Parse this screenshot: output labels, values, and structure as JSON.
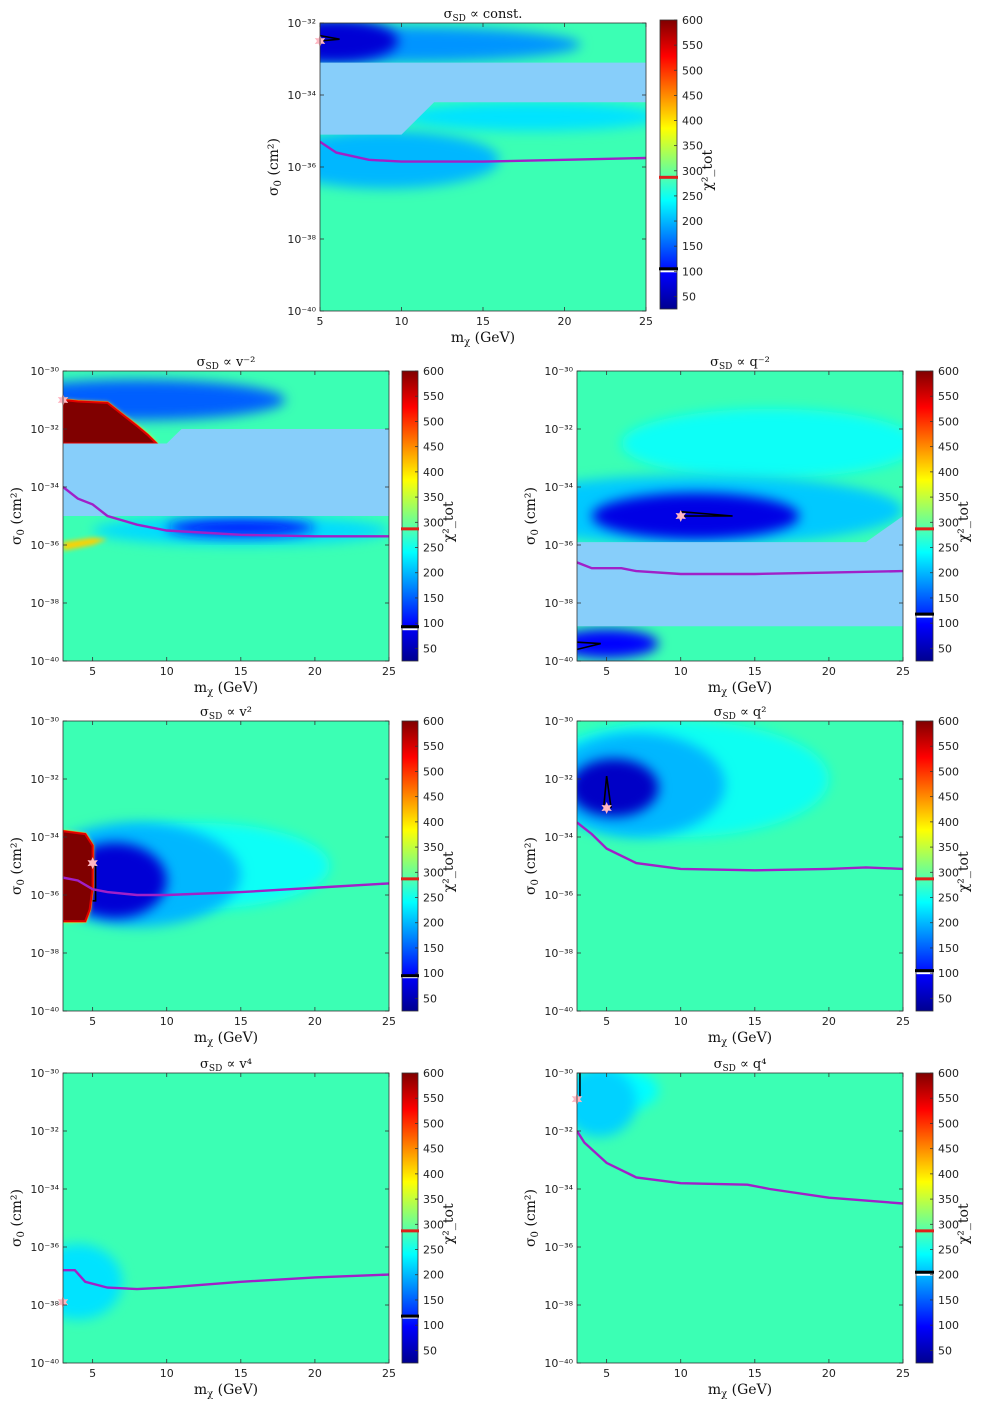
{
  "colorbar": {
    "label": "χ²_tot",
    "ticks_main": [
      50,
      100,
      150,
      200,
      250,
      300,
      350,
      400,
      450,
      500,
      550,
      600
    ],
    "range": [
      25,
      600
    ],
    "stops": [
      "#00008f",
      "#0000ff",
      "#0080ff",
      "#00ffff",
      "#80ff80",
      "#ffff00",
      "#ff8000",
      "#ff0000",
      "#800000"
    ]
  },
  "bg_color": "#3bffb4",
  "band_color": "#87cefa",
  "limit_color": "#a020c8",
  "star_color": "#ffb6c1",
  "chart_data": [
    {
      "id": "const",
      "type": "heatmap",
      "title_main": "σ",
      "title_sub": "SD",
      "title_rest": " ∝ const.",
      "xlabel": "m",
      "xlabel_sub": "χ",
      "xlabel_rest": " (GeV)",
      "ylabel": "σ",
      "ylabel_sub": "0",
      "ylabel_rest": " (cm²)",
      "xlim": [
        5,
        25
      ],
      "ylim": [
        -40,
        -32
      ],
      "xticks": [
        5,
        10,
        15,
        20,
        25
      ],
      "yticks": [
        -40,
        -38,
        -36,
        -34,
        -32
      ],
      "ytick_labels": [
        "10⁻⁴⁰",
        "10⁻³⁸",
        "10⁻³⁶",
        "10⁻³⁴",
        "10⁻³²"
      ],
      "band": [
        [
          5,
          -35.1
        ],
        [
          10,
          -35.1
        ],
        [
          12,
          -34.2
        ],
        [
          25,
          -34.2
        ],
        [
          25,
          -33.1
        ],
        [
          5,
          -33.1
        ]
      ],
      "blobs": [
        {
          "x": 5.8,
          "y": -32.5,
          "rx": 4,
          "ry": 0.6,
          "chi": 70
        },
        {
          "x": 9,
          "y": -32.6,
          "rx": 12,
          "ry": 0.5,
          "chi": 180
        },
        {
          "x": 9,
          "y": -35.8,
          "rx": 7,
          "ry": 0.8,
          "chi": 200
        },
        {
          "x": 18,
          "y": -34.6,
          "rx": 8,
          "ry": 0.4,
          "chi": 225
        }
      ],
      "star": [
        5,
        -32.5
      ],
      "contour": [
        [
          5,
          -32.5
        ],
        [
          6.2,
          -32.45
        ],
        [
          5,
          -32.35
        ]
      ],
      "limit": [
        [
          5,
          -35.3
        ],
        [
          6,
          -35.6
        ],
        [
          8,
          -35.8
        ],
        [
          10,
          -35.85
        ],
        [
          15,
          -35.85
        ],
        [
          20,
          -35.8
        ],
        [
          25,
          -35.75
        ]
      ],
      "marker_red": 287,
      "marker_black": 105,
      "bar_cut": 100
    },
    {
      "id": "vm2",
      "type": "heatmap",
      "title_main": "σ",
      "title_sub": "SD",
      "title_rest": " ∝ v⁻²",
      "xlabel": "m",
      "xlabel_sub": "χ",
      "xlabel_rest": " (GeV)",
      "ylabel": "σ",
      "ylabel_sub": "0",
      "ylabel_rest": " (cm²)",
      "xlim": [
        3,
        25
      ],
      "ylim": [
        -40,
        -30
      ],
      "xticks": [
        5,
        10,
        15,
        20,
        25
      ],
      "yticks": [
        -40,
        -38,
        -36,
        -34,
        -32,
        -30
      ],
      "ytick_labels": [
        "10⁻⁴⁰",
        "10⁻³⁸",
        "10⁻³⁶",
        "10⁻³⁴",
        "10⁻³²",
        "10⁻³⁰"
      ],
      "band": [
        [
          3,
          -35.0
        ],
        [
          25,
          -35.0
        ],
        [
          25,
          -32.0
        ],
        [
          11,
          -32.0
        ],
        [
          10,
          -32.5
        ],
        [
          3,
          -32.5
        ]
      ],
      "blobs": [
        {
          "x": 8,
          "y": -31.0,
          "rx": 10,
          "ry": 0.7,
          "chi": 150
        },
        {
          "x": 15,
          "y": -35.4,
          "rx": 5,
          "ry": 0.3,
          "chi": 110
        },
        {
          "x": 15,
          "y": -35.5,
          "rx": 10,
          "ry": 0.5,
          "chi": 220
        }
      ],
      "hot": [
        [
          3,
          -32.5
        ],
        [
          3,
          -31.0
        ],
        [
          4,
          -31.05
        ],
        [
          6,
          -31.1
        ],
        [
          7,
          -31.5
        ],
        [
          8,
          -31.9
        ],
        [
          8.7,
          -32.2
        ],
        [
          9.3,
          -32.5
        ]
      ],
      "hot_strip": [
        [
          3,
          -36.2
        ],
        [
          3,
          -35.9
        ],
        [
          5,
          -35.75
        ],
        [
          6,
          -35.8
        ],
        [
          5,
          -36.0
        ]
      ],
      "star": [
        3,
        -31.0
      ],
      "limit": [
        [
          3,
          -34.0
        ],
        [
          4,
          -34.4
        ],
        [
          5,
          -34.6
        ],
        [
          6,
          -35.0
        ],
        [
          8,
          -35.3
        ],
        [
          10,
          -35.5
        ],
        [
          15,
          -35.65
        ],
        [
          20,
          -35.7
        ],
        [
          25,
          -35.7
        ]
      ],
      "marker_red": 287,
      "marker_black": 93,
      "bar_cut": 88
    },
    {
      "id": "qm2",
      "type": "heatmap",
      "title_main": "σ",
      "title_sub": "SD",
      "title_rest": " ∝ q⁻²",
      "xlabel": "m",
      "xlabel_sub": "χ",
      "xlabel_rest": " (GeV)",
      "ylabel": "σ",
      "ylabel_sub": "0",
      "ylabel_rest": " (cm²)",
      "xlim": [
        3,
        25
      ],
      "ylim": [
        -40,
        -30
      ],
      "xticks": [
        5,
        10,
        15,
        20,
        25
      ],
      "yticks": [
        -40,
        -38,
        -36,
        -34,
        -32,
        -30
      ],
      "ytick_labels": [
        "10⁻⁴⁰",
        "10⁻³⁸",
        "10⁻³⁶",
        "10⁻³⁴",
        "10⁻³²",
        "10⁻³⁰"
      ],
      "band": [
        [
          3,
          -38.8
        ],
        [
          25,
          -38.8
        ],
        [
          25,
          -35.0
        ],
        [
          22.5,
          -35.9
        ],
        [
          3,
          -35.9
        ]
      ],
      "blobs": [
        {
          "x": 11,
          "y": -35.0,
          "rx": 7,
          "ry": 0.8,
          "chi": 80
        },
        {
          "x": 11,
          "y": -34.8,
          "rx": 14,
          "ry": 1.2,
          "chi": 210
        },
        {
          "x": 5,
          "y": -39.4,
          "rx": 3.5,
          "ry": 0.5,
          "chi": 100
        },
        {
          "x": 16,
          "y": -32.5,
          "rx": 10,
          "ry": 1.2,
          "chi": 245
        }
      ],
      "star": [
        10,
        -35.0
      ],
      "contour": [
        [
          10,
          -35.0
        ],
        [
          13.5,
          -35.0
        ],
        [
          10,
          -34.85
        ]
      ],
      "contour2": [
        [
          3,
          -39.35
        ],
        [
          4.6,
          -39.4
        ],
        [
          3,
          -39.6
        ]
      ],
      "limit": [
        [
          3,
          -36.6
        ],
        [
          4,
          -36.8
        ],
        [
          6,
          -36.8
        ],
        [
          7,
          -36.9
        ],
        [
          10,
          -37.0
        ],
        [
          15,
          -37.0
        ],
        [
          20,
          -36.95
        ],
        [
          25,
          -36.9
        ]
      ],
      "marker_red": 287,
      "marker_black": 118,
      "bar_cut": 113
    },
    {
      "id": "v2",
      "type": "heatmap",
      "title_main": "σ",
      "title_sub": "SD",
      "title_rest": " ∝ v²",
      "xlabel": "m",
      "xlabel_sub": "χ",
      "xlabel_rest": " (GeV)",
      "ylabel": "σ",
      "ylabel_sub": "0",
      "ylabel_rest": " (cm²)",
      "xlim": [
        3,
        25
      ],
      "ylim": [
        -40,
        -30
      ],
      "xticks": [
        5,
        10,
        15,
        20,
        25
      ],
      "yticks": [
        -40,
        -38,
        -36,
        -34,
        -32,
        -30
      ],
      "ytick_labels": [
        "10⁻⁴⁰",
        "10⁻³⁸",
        "10⁻³⁶",
        "10⁻³⁴",
        "10⁻³²",
        "10⁻³⁰"
      ],
      "blobs": [
        {
          "x": 6.5,
          "y": -35.5,
          "rx": 3.5,
          "ry": 1.3,
          "chi": 70
        },
        {
          "x": 8,
          "y": -35.3,
          "rx": 7,
          "ry": 1.8,
          "chi": 200
        },
        {
          "x": 12,
          "y": -35.0,
          "rx": 9,
          "ry": 1.5,
          "chi": 245
        }
      ],
      "hot": [
        [
          3,
          -33.8
        ],
        [
          4.5,
          -33.9
        ],
        [
          5,
          -34.3
        ],
        [
          5,
          -35.7
        ],
        [
          4.8,
          -36.5
        ],
        [
          4.5,
          -36.9
        ],
        [
          3,
          -36.9
        ]
      ],
      "star": [
        5,
        -34.9
      ],
      "contour": [
        [
          5,
          -34.9
        ],
        [
          5.2,
          -35.0
        ],
        [
          5.2,
          -36.2
        ],
        [
          5,
          -36.2
        ]
      ],
      "limit": [
        [
          3,
          -35.4
        ],
        [
          4,
          -35.5
        ],
        [
          5,
          -35.8
        ],
        [
          6,
          -35.9
        ],
        [
          8,
          -36.0
        ],
        [
          10,
          -36.0
        ],
        [
          15,
          -35.9
        ],
        [
          20,
          -35.75
        ],
        [
          25,
          -35.6
        ]
      ],
      "marker_red": 287,
      "marker_black": 95,
      "bar_cut": 92
    },
    {
      "id": "q2",
      "type": "heatmap",
      "title_main": "σ",
      "title_sub": "SD",
      "title_rest": " ∝ q²",
      "xlabel": "m",
      "xlabel_sub": "χ",
      "xlabel_rest": " (GeV)",
      "ylabel": "σ",
      "ylabel_sub": "0",
      "ylabel_rest": " (cm²)",
      "xlim": [
        3,
        25
      ],
      "ylim": [
        -40,
        -30
      ],
      "xticks": [
        5,
        10,
        15,
        20,
        25
      ],
      "yticks": [
        -40,
        -38,
        -36,
        -34,
        -32,
        -30
      ],
      "ytick_labels": [
        "10⁻⁴⁰",
        "10⁻³⁸",
        "10⁻³⁶",
        "10⁻³⁴",
        "10⁻³²",
        "10⁻³⁰"
      ],
      "blobs": [
        {
          "x": 5.5,
          "y": -32.3,
          "rx": 3,
          "ry": 1.0,
          "chi": 60
        },
        {
          "x": 7,
          "y": -32.2,
          "rx": 6,
          "ry": 1.8,
          "chi": 200
        },
        {
          "x": 10,
          "y": -32.0,
          "rx": 10,
          "ry": 2.0,
          "chi": 248
        }
      ],
      "star": [
        5,
        -33.0
      ],
      "contour": [
        [
          4.8,
          -33.0
        ],
        [
          5,
          -31.9
        ],
        [
          5.3,
          -33.0
        ]
      ],
      "limit": [
        [
          3,
          -33.5
        ],
        [
          4,
          -33.9
        ],
        [
          5,
          -34.4
        ],
        [
          7,
          -34.9
        ],
        [
          10,
          -35.1
        ],
        [
          15,
          -35.15
        ],
        [
          20,
          -35.1
        ],
        [
          22.5,
          -35.05
        ],
        [
          25,
          -35.1
        ]
      ],
      "marker_red": 287,
      "marker_black": 105,
      "bar_cut": 100
    },
    {
      "id": "v4",
      "type": "heatmap",
      "title_main": "σ",
      "title_sub": "SD",
      "title_rest": " ∝ v⁴",
      "xlabel": "m",
      "xlabel_sub": "χ",
      "xlabel_rest": " (GeV)",
      "ylabel": "σ",
      "ylabel_sub": "0",
      "ylabel_rest": " (cm²)",
      "xlim": [
        3,
        25
      ],
      "ylim": [
        -40,
        -30
      ],
      "xticks": [
        5,
        10,
        15,
        20,
        25
      ],
      "yticks": [
        -40,
        -38,
        -36,
        -34,
        -32,
        -30
      ],
      "ytick_labels": [
        "10⁻⁴⁰",
        "10⁻³⁸",
        "10⁻³⁶",
        "10⁻³⁴",
        "10⁻³²",
        "10⁻³⁰"
      ],
      "blobs": [
        {
          "x": 4,
          "y": -37.2,
          "rx": 3,
          "ry": 1.3,
          "chi": 225
        }
      ],
      "star": [
        3,
        -37.9
      ],
      "limit": [
        [
          3,
          -36.8
        ],
        [
          3.8,
          -36.8
        ],
        [
          4.5,
          -37.2
        ],
        [
          6,
          -37.4
        ],
        [
          8,
          -37.45
        ],
        [
          10,
          -37.4
        ],
        [
          15,
          -37.2
        ],
        [
          20,
          -37.05
        ],
        [
          25,
          -36.95
        ]
      ],
      "marker_red": 287,
      "marker_black": 118,
      "bar_cut": 115
    },
    {
      "id": "q4",
      "type": "heatmap",
      "title_main": "σ",
      "title_sub": "SD",
      "title_rest": " ∝ q⁴",
      "xlabel": "m",
      "xlabel_sub": "χ",
      "xlabel_rest": " (GeV)",
      "ylabel": "σ",
      "ylabel_sub": "0",
      "ylabel_rest": " (cm²)",
      "xlim": [
        3,
        25
      ],
      "ylim": [
        -40,
        -30
      ],
      "xticks": [
        5,
        10,
        15,
        20,
        25
      ],
      "yticks": [
        -40,
        -38,
        -36,
        -34,
        -32,
        -30
      ],
      "ytick_labels": [
        "10⁻⁴⁰",
        "10⁻³⁸",
        "10⁻³⁶",
        "10⁻³⁴",
        "10⁻³²",
        "10⁻³⁰"
      ],
      "blobs": [
        {
          "x": 4.5,
          "y": -31.0,
          "rx": 2.5,
          "ry": 1.2,
          "chi": 215
        },
        {
          "x": 6,
          "y": -30.6,
          "rx": 2.5,
          "ry": 0.7,
          "chi": 240
        }
      ],
      "star": [
        3,
        -30.9
      ],
      "contour": [
        [
          3.2,
          -30.0
        ],
        [
          3.2,
          -30.8
        ]
      ],
      "limit": [
        [
          3,
          -32.0
        ],
        [
          3.5,
          -32.4
        ],
        [
          5,
          -33.1
        ],
        [
          7,
          -33.6
        ],
        [
          10,
          -33.8
        ],
        [
          14.5,
          -33.85
        ],
        [
          16,
          -34.0
        ],
        [
          20,
          -34.3
        ],
        [
          25,
          -34.5
        ]
      ],
      "marker_red": 287,
      "marker_black": 205,
      "bar_cut": 200
    }
  ]
}
